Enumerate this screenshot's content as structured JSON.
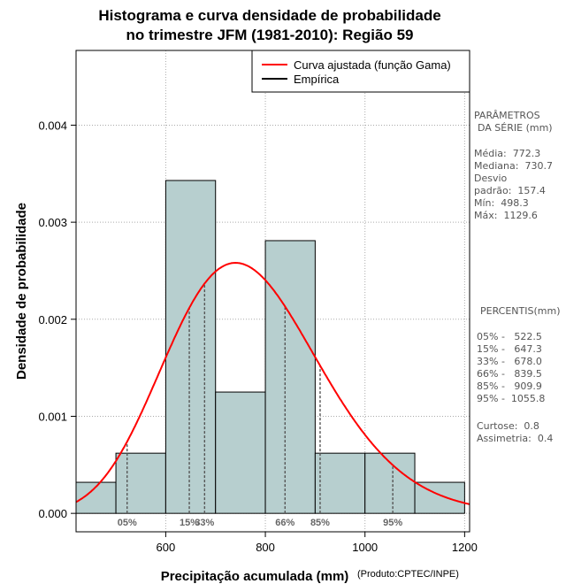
{
  "chart_data": {
    "type": "bar",
    "title": [
      "Histograma e curva densidade de probabilidade",
      "no trimestre JFM (1981-2010): Região 59"
    ],
    "xlabel": "Precipitação acumulada (mm)",
    "ylabel": "Densidade de probabilidade",
    "credit": "(Produto:CPTEC/INPE)",
    "xlim": [
      420,
      1210
    ],
    "ylim": [
      -0.00019,
      0.00477
    ],
    "x_ticks": [
      600,
      800,
      1000,
      1200
    ],
    "x_tick_labels": [
      "600",
      "800",
      "1000",
      "1200"
    ],
    "y_ticks": [
      0.0,
      0.001,
      0.002,
      0.003,
      0.004
    ],
    "y_tick_labels": [
      "0.000",
      "0.001",
      "0.002",
      "0.003",
      "0.004"
    ],
    "grid": true,
    "bins": [
      {
        "start": 400,
        "end": 500,
        "density": 0.00032
      },
      {
        "start": 500,
        "end": 600,
        "density": 0.00062
      },
      {
        "start": 600,
        "end": 700,
        "density": 0.00343
      },
      {
        "start": 700,
        "end": 800,
        "density": 0.00125
      },
      {
        "start": 800,
        "end": 900,
        "density": 0.00281
      },
      {
        "start": 900,
        "end": 1000,
        "density": 0.00062
      },
      {
        "start": 1000,
        "end": 1100,
        "density": 0.00062
      },
      {
        "start": 1100,
        "end": 1200,
        "density": 0.00032
      }
    ],
    "gamma_fit": {
      "shape": 24.1,
      "scale": 32.04
    },
    "legend": {
      "placement": "top-right",
      "items": [
        {
          "label": "Curva ajustada (função Gama)",
          "color": "#ff0000"
        },
        {
          "label": "Empírica",
          "color": "#000000"
        }
      ]
    },
    "percentile_lines": [
      {
        "label": "05%",
        "value": 522.5
      },
      {
        "label": "15%",
        "value": 647.3
      },
      {
        "label": "33%",
        "value": 678.0
      },
      {
        "label": "66%",
        "value": 839.5
      },
      {
        "label": "85%",
        "value": 909.9
      },
      {
        "label": "95%",
        "value": 1055.8
      }
    ],
    "colors": {
      "bar": "#b7cfcf",
      "curve": "#ff0000",
      "grid": "#aaaaaa",
      "percentile_line": "#555555"
    }
  },
  "stats": {
    "heading_line1": "PARÂMETROS",
    "heading_line2": "DA SÉRIE (mm)",
    "media": "Média:  772.3",
    "mediana": "Mediana:  730.7",
    "desvio_line1": "Desvio",
    "desvio_line2": "padrão:  157.4",
    "min": "Mín:  498.3",
    "max": "Máx:  1129.6"
  },
  "percentis": {
    "heading": "PERCENTIS(mm)",
    "p05": "05% -   522.5",
    "p15": "15% -   647.3",
    "p33": "33% -   678.0",
    "p66": "66% -   839.5",
    "p85": "85% -   909.9",
    "p95": "95% -  1055.8",
    "curtose": "Curtose:  0.8",
    "assimetria": "Assimetria:  0.4"
  }
}
